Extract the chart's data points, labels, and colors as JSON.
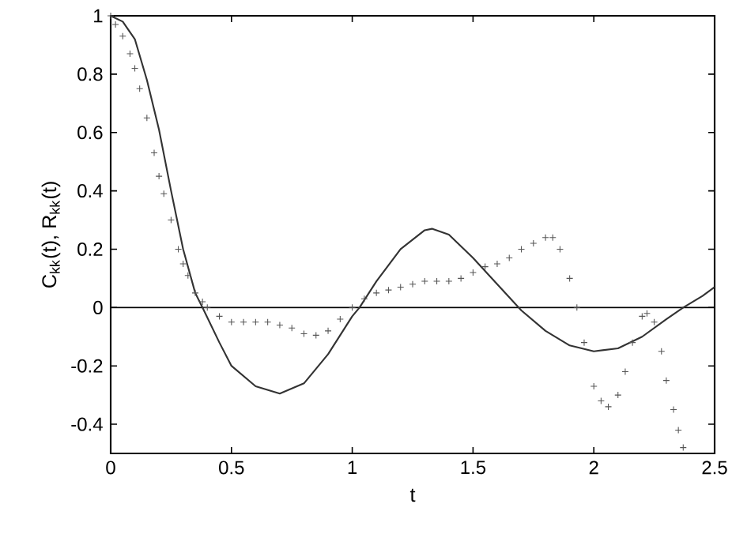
{
  "chart_data": {
    "type": "line",
    "xlabel": "t",
    "ylabel": "C$_{kk}$(t),  R$_{kk}$(t)",
    "xlim": [
      0,
      2.5
    ],
    "ylim": [
      -0.5,
      1
    ],
    "xticks": [
      0,
      0.5,
      1,
      1.5,
      2,
      2.5
    ],
    "yticks": [
      -0.4,
      -0.2,
      0,
      0.2,
      0.4,
      0.6,
      0.8,
      1
    ],
    "grid": false,
    "ref_lines": [
      {
        "axis": "y",
        "value": 0,
        "color": "#000000"
      }
    ],
    "series": [
      {
        "color": "#333333",
        "marker": "none",
        "line_style": "solid",
        "x": [
          0,
          0.05,
          0.1,
          0.15,
          0.2,
          0.25,
          0.3,
          0.35,
          0.38,
          0.45,
          0.5,
          0.6,
          0.7,
          0.8,
          0.9,
          1.0,
          1.03,
          1.1,
          1.2,
          1.3,
          1.33,
          1.4,
          1.5,
          1.6,
          1.7,
          1.8,
          1.9,
          2.0,
          2.1,
          2.2,
          2.3,
          2.37,
          2.45,
          2.5
        ],
        "values": [
          1,
          0.98,
          0.92,
          0.78,
          0.61,
          0.4,
          0.2,
          0.05,
          0,
          -0.12,
          -0.2,
          -0.27,
          -0.295,
          -0.26,
          -0.16,
          -0.03,
          0,
          0.09,
          0.2,
          0.265,
          0.27,
          0.25,
          0.17,
          0.08,
          -0.01,
          -0.08,
          -0.13,
          -0.15,
          -0.14,
          -0.1,
          -0.04,
          0,
          0.04,
          0.07
        ]
      },
      {
        "type": "scatter",
        "color": "#555555",
        "marker": "cross",
        "x": [
          0,
          0.02,
          0.05,
          0.08,
          0.1,
          0.12,
          0.15,
          0.18,
          0.2,
          0.22,
          0.25,
          0.28,
          0.3,
          0.32,
          0.35,
          0.38,
          0.4,
          0.45,
          0.5,
          0.55,
          0.6,
          0.65,
          0.7,
          0.75,
          0.8,
          0.85,
          0.9,
          0.95,
          1.0,
          1.05,
          1.1,
          1.15,
          1.2,
          1.25,
          1.3,
          1.35,
          1.4,
          1.45,
          1.5,
          1.55,
          1.6,
          1.65,
          1.7,
          1.75,
          1.8,
          1.83,
          1.86,
          1.9,
          1.93,
          1.96,
          2.0,
          2.03,
          2.06,
          2.1,
          2.13,
          2.16,
          2.2,
          2.22,
          2.25,
          2.28,
          2.3,
          2.33,
          2.35,
          2.37
        ],
        "values": [
          1,
          0.97,
          0.93,
          0.87,
          0.82,
          0.75,
          0.65,
          0.53,
          0.45,
          0.39,
          0.3,
          0.2,
          0.15,
          0.11,
          0.05,
          0.02,
          0,
          -0.03,
          -0.05,
          -0.05,
          -0.05,
          -0.05,
          -0.06,
          -0.07,
          -0.09,
          -0.095,
          -0.08,
          -0.04,
          0,
          0.03,
          0.05,
          0.06,
          0.07,
          0.08,
          0.09,
          0.09,
          0.09,
          0.1,
          0.12,
          0.14,
          0.15,
          0.17,
          0.2,
          0.22,
          0.24,
          0.24,
          0.2,
          0.1,
          0.0,
          -0.12,
          -0.27,
          -0.32,
          -0.34,
          -0.3,
          -0.22,
          -0.12,
          -0.03,
          -0.02,
          -0.05,
          -0.15,
          -0.25,
          -0.35,
          -0.42,
          -0.48
        ]
      }
    ]
  }
}
